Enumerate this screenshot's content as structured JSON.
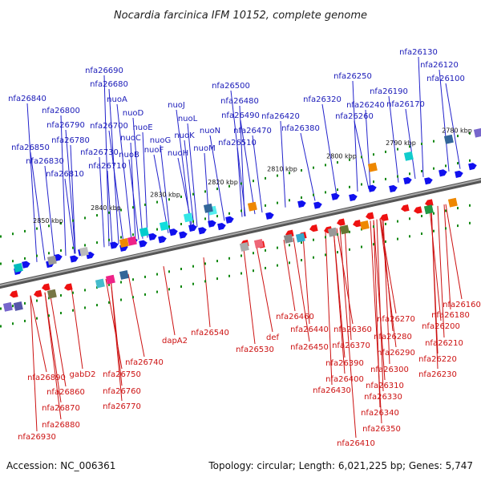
{
  "title": "Nocardia farcinica IFM 10152, complete genome",
  "footer": {
    "accession": "Accession: NC_006361",
    "topology": "Topology: circular; Length: 6,021,225 bp; Genes: 5,747"
  },
  "colors": {
    "forward": "#1010ee",
    "reverse": "#ee1111",
    "backbone": "#888888",
    "tick": "#118811",
    "top_line": "#2222cc",
    "bottom_line": "#cc1111"
  },
  "scale_ticks": [
    {
      "label": "2780 kbp"
    },
    {
      "label": "2790 kbp"
    },
    {
      "label": "2800 kbp"
    },
    {
      "label": "2810 kbp"
    },
    {
      "label": "2820 kbp"
    },
    {
      "label": "2830 kbp"
    },
    {
      "label": "2840 kbp"
    },
    {
      "label": "2850 kbp"
    }
  ],
  "top_labels": [
    "nfa26130",
    "nfa26120",
    "nfa26100",
    "nfa26690",
    "nfa26680",
    "nfa26500",
    "nfa26250",
    "nfa26840",
    "nuoA",
    "nfa26480",
    "nfa26190",
    "nfa26320",
    "nfa26800",
    "nuoD",
    "nuoJ",
    "nfa26240",
    "nfa26170",
    "nfa26490",
    "nfa26420",
    "nfa26790",
    "nfa26700",
    "nuoE",
    "nuoL",
    "nfa26260",
    "nuoC",
    "nfa26470",
    "nfa26380",
    "nfa26780",
    "nuoG",
    "nuoN",
    "nfa26510",
    "nuoK",
    "nfa26850",
    "nfa26730",
    "nuoB",
    "nuoF",
    "nuoM",
    "nfa26830",
    "nuoH",
    "nfa26710",
    "nfa26810"
  ],
  "bottom_labels": [
    "nfa26160",
    "nfa26460",
    "nfa26180",
    "nfa26270",
    "nfa26200",
    "nfa26440",
    "nfa26360",
    "nfa26280",
    "nfa26540",
    "def",
    "dapA2",
    "nfa26370",
    "nfa26450",
    "nfa26530",
    "nfa26210",
    "nfa26290",
    "nfa26390",
    "nfa26220",
    "nfa26740",
    "gabD2",
    "nfa26300",
    "nfa26750",
    "nfa26400",
    "nfa26230",
    "nfa26890",
    "nfa26310",
    "nfa26430",
    "nfa26860",
    "nfa26760",
    "nfa26330",
    "nfa26870",
    "nfa26770",
    "nfa26340",
    "nfa26880",
    "nfa26350",
    "nfa26930",
    "nfa26410"
  ]
}
